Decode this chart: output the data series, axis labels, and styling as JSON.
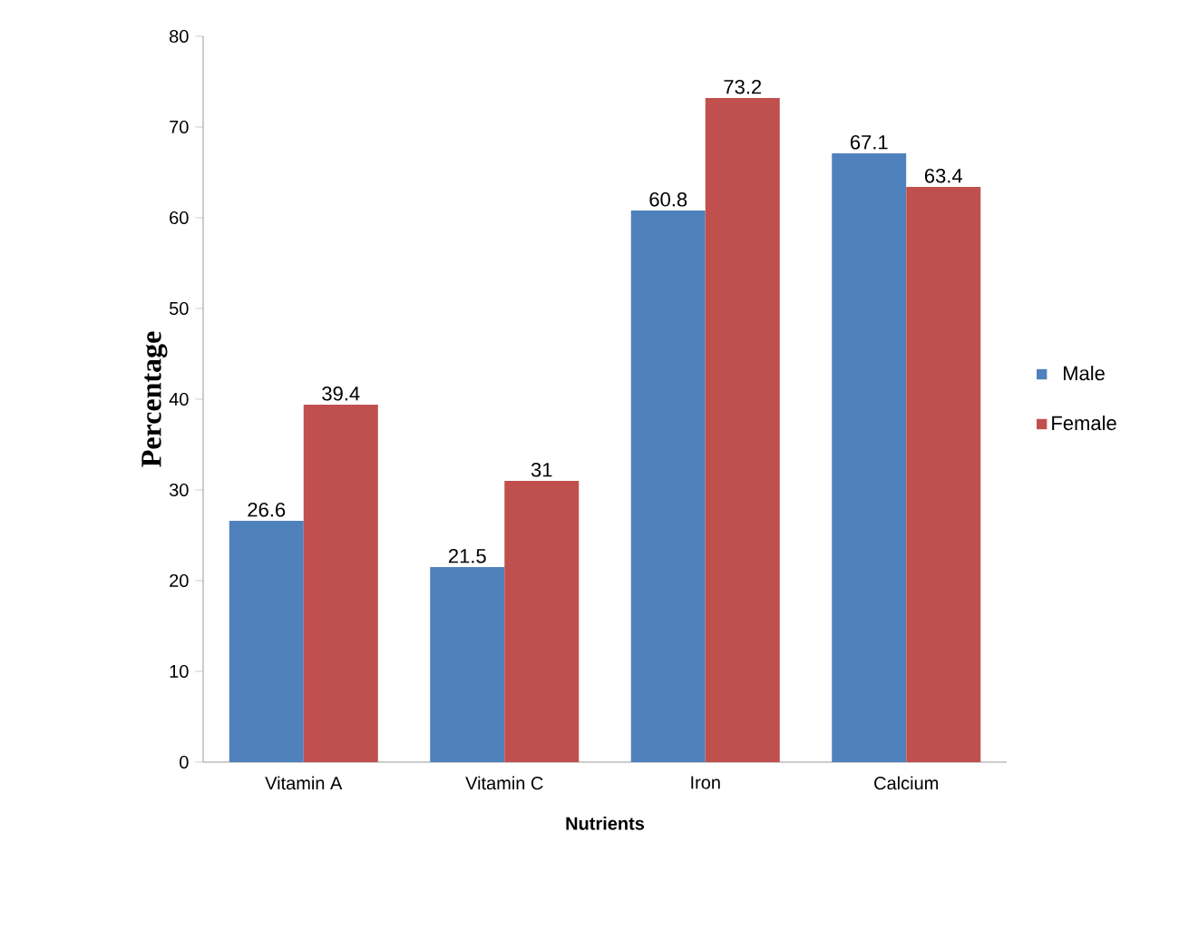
{
  "chart_data": {
    "type": "bar",
    "xlabel": "Nutrients",
    "ylabel": "Percentage",
    "categories": [
      "Vitamin A",
      "Vitamin C",
      "Iron",
      "Calcium"
    ],
    "series": [
      {
        "name": "Male",
        "color": "#4f81bd",
        "values": [
          26.6,
          21.5,
          60.8,
          67.1
        ]
      },
      {
        "name": "Female",
        "color": "#c0504d",
        "values": [
          39.4,
          31,
          73.2,
          63.4
        ]
      }
    ],
    "ylim": [
      0,
      80
    ],
    "yticks": [
      0,
      10,
      20,
      30,
      40,
      50,
      60,
      70,
      80
    ],
    "data_labels": true,
    "legend": "right",
    "grid": false
  }
}
